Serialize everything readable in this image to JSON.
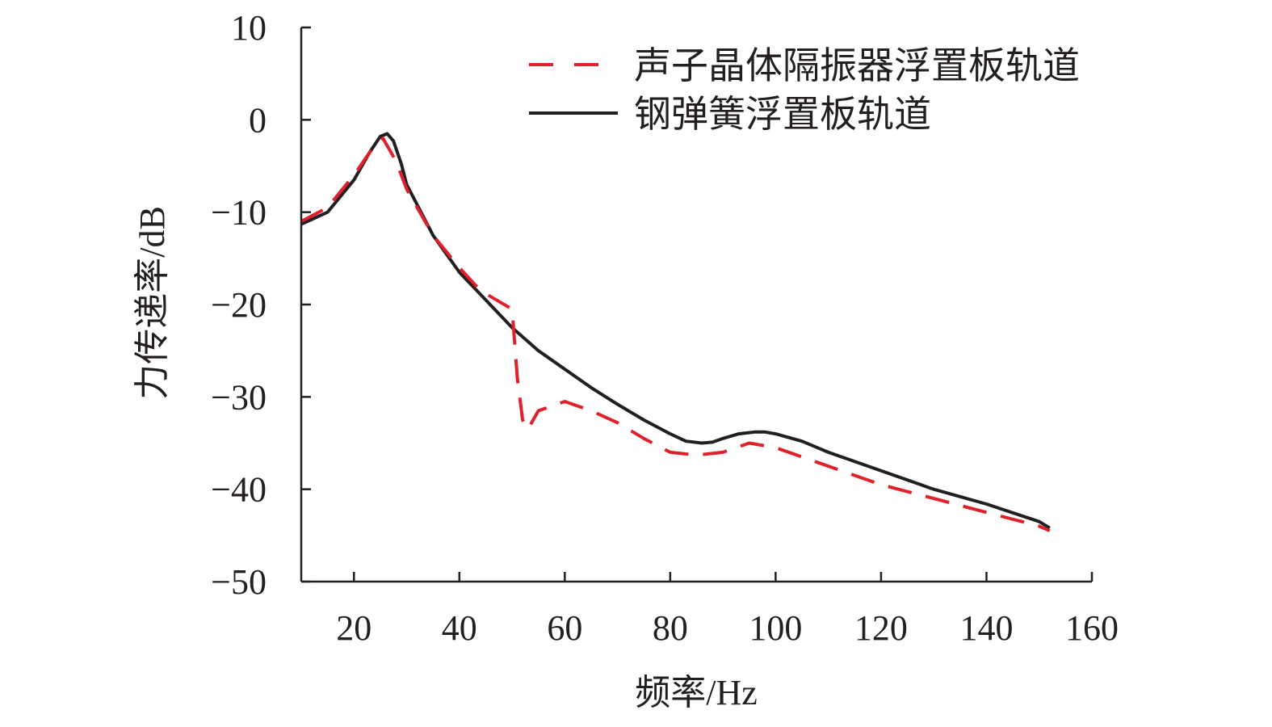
{
  "chart_data": {
    "type": "line",
    "xlabel": "频率/Hz",
    "ylabel": "力传递率/dB",
    "xlim": [
      10,
      160
    ],
    "ylim": [
      -50,
      10
    ],
    "x_ticks": [
      20,
      40,
      60,
      80,
      100,
      120,
      140,
      160
    ],
    "y_ticks": [
      10,
      0,
      -10,
      -20,
      -30,
      -40,
      -50
    ],
    "x_tick_labels": [
      "20",
      "40",
      "60",
      "80",
      "100",
      "120",
      "140",
      "160"
    ],
    "y_tick_labels": [
      "10",
      "0",
      "−10",
      "−20",
      "−30",
      "−40",
      "−50"
    ],
    "grid": false,
    "legend_position": "top-right",
    "series": [
      {
        "name": "声子晶体隔振器浮置板轨道",
        "style": "dashed",
        "color": "#e0202b",
        "x": [
          10,
          15,
          20,
          23,
          25.5,
          28,
          30,
          35,
          40,
          44,
          50,
          51,
          52,
          53,
          54,
          55,
          60,
          65,
          70,
          75,
          80,
          85,
          90,
          95,
          100,
          110,
          120,
          130,
          140,
          150,
          152
        ],
        "y": [
          -11,
          -9.5,
          -6,
          -3.5,
          -2,
          -4.5,
          -7.5,
          -12.5,
          -16,
          -18.5,
          -20.5,
          -28,
          -32.5,
          -33.5,
          -32.5,
          -31.5,
          -30.5,
          -31.5,
          -32.8,
          -34.5,
          -36,
          -36.3,
          -36,
          -35,
          -35.5,
          -37.5,
          -39.5,
          -41,
          -42.5,
          -44,
          -44.5
        ]
      },
      {
        "name": "钢弹簧浮置板轨道",
        "style": "solid",
        "color": "#231f20",
        "x": [
          10,
          15,
          20,
          23,
          25,
          26.3,
          27.5,
          29,
          30,
          35,
          40,
          45,
          50,
          55,
          60,
          65,
          70,
          75,
          80,
          83,
          86,
          88,
          90,
          93,
          96,
          98,
          100,
          105,
          110,
          120,
          130,
          140,
          150,
          152
        ],
        "y": [
          -11.3,
          -10,
          -6.5,
          -3.5,
          -1.8,
          -1.5,
          -2.3,
          -4.8,
          -7,
          -12.5,
          -16.5,
          -19.5,
          -22.5,
          -25,
          -27,
          -29,
          -30.8,
          -32.5,
          -34,
          -34.8,
          -35,
          -34.9,
          -34.5,
          -34,
          -33.8,
          -33.8,
          -34,
          -34.8,
          -36,
          -38,
          -40,
          -41.6,
          -43.5,
          -44.2
        ]
      }
    ]
  }
}
